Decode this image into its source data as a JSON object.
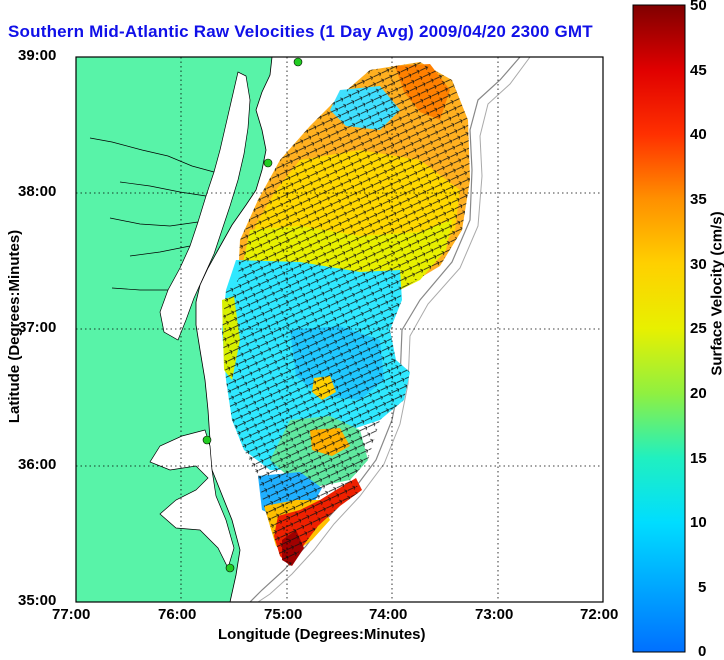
{
  "title": "Southern Mid-Atlantic Raw Velocities (1 Day Avg) 2009/04/20 2300 GMT",
  "axes": {
    "xlabel": "Longitude (Degrees:Minutes)",
    "ylabel": "Latitude (Degrees:Minutes)",
    "xticks": [
      "77:00",
      "76:00",
      "75:00",
      "74:00",
      "73:00",
      "72:00"
    ],
    "yticks": [
      "39:00",
      "38:00",
      "37:00",
      "36:00",
      "35:00"
    ]
  },
  "colorbar": {
    "label": "Surface Velocity (cm/s)",
    "ticks": [
      "50",
      "45",
      "40",
      "35",
      "30",
      "25",
      "20",
      "15",
      "10",
      "5",
      "0"
    ],
    "min": 0,
    "max": 50
  },
  "colors": {
    "land": "#58f3a8",
    "water": "#ffffff",
    "title": "#1010e8",
    "station": "#22cc22"
  }
}
